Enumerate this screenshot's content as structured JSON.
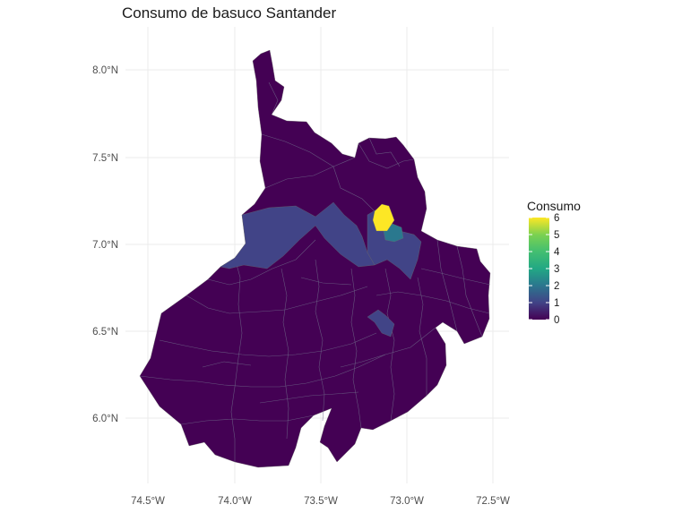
{
  "title": "Consumo de basuco Santander",
  "axes": {
    "x_ticks": [
      "74.5°W",
      "74.0°W",
      "73.5°W",
      "73.0°W",
      "72.5°W"
    ],
    "y_ticks": [
      "8.0°N",
      "7.5°N",
      "7.0°N",
      "6.5°N",
      "6.0°N"
    ]
  },
  "legend": {
    "title": "Consumo",
    "ticks": [
      "6",
      "5",
      "4",
      "3",
      "2",
      "1",
      "0"
    ],
    "colors": [
      "#440154",
      "#414487",
      "#2a788e",
      "#22a884",
      "#7ad151",
      "#fde725"
    ]
  },
  "chart_data": {
    "type": "choropleth",
    "title": "Consumo de basuco Santander",
    "xlim": [
      -74.6,
      -72.4
    ],
    "ylim": [
      5.72,
      8.12
    ],
    "x_ticks": [
      -74.5,
      -74.0,
      -73.5,
      -73.0,
      -72.5
    ],
    "y_ticks": [
      8.0,
      7.5,
      7.0,
      6.5,
      6.0
    ],
    "legend_title": "Consumo",
    "legend_range": [
      0,
      6
    ],
    "legend_ticks": [
      0,
      1,
      2,
      3,
      4,
      5,
      6
    ],
    "highlighted_regions": [
      {
        "value": 6,
        "color": "#fde725"
      },
      {
        "value": 2,
        "color": "#2a788e"
      },
      {
        "value": 1,
        "color": "#414487"
      }
    ],
    "default_value": 0,
    "grid": true,
    "legend_position": "right"
  }
}
